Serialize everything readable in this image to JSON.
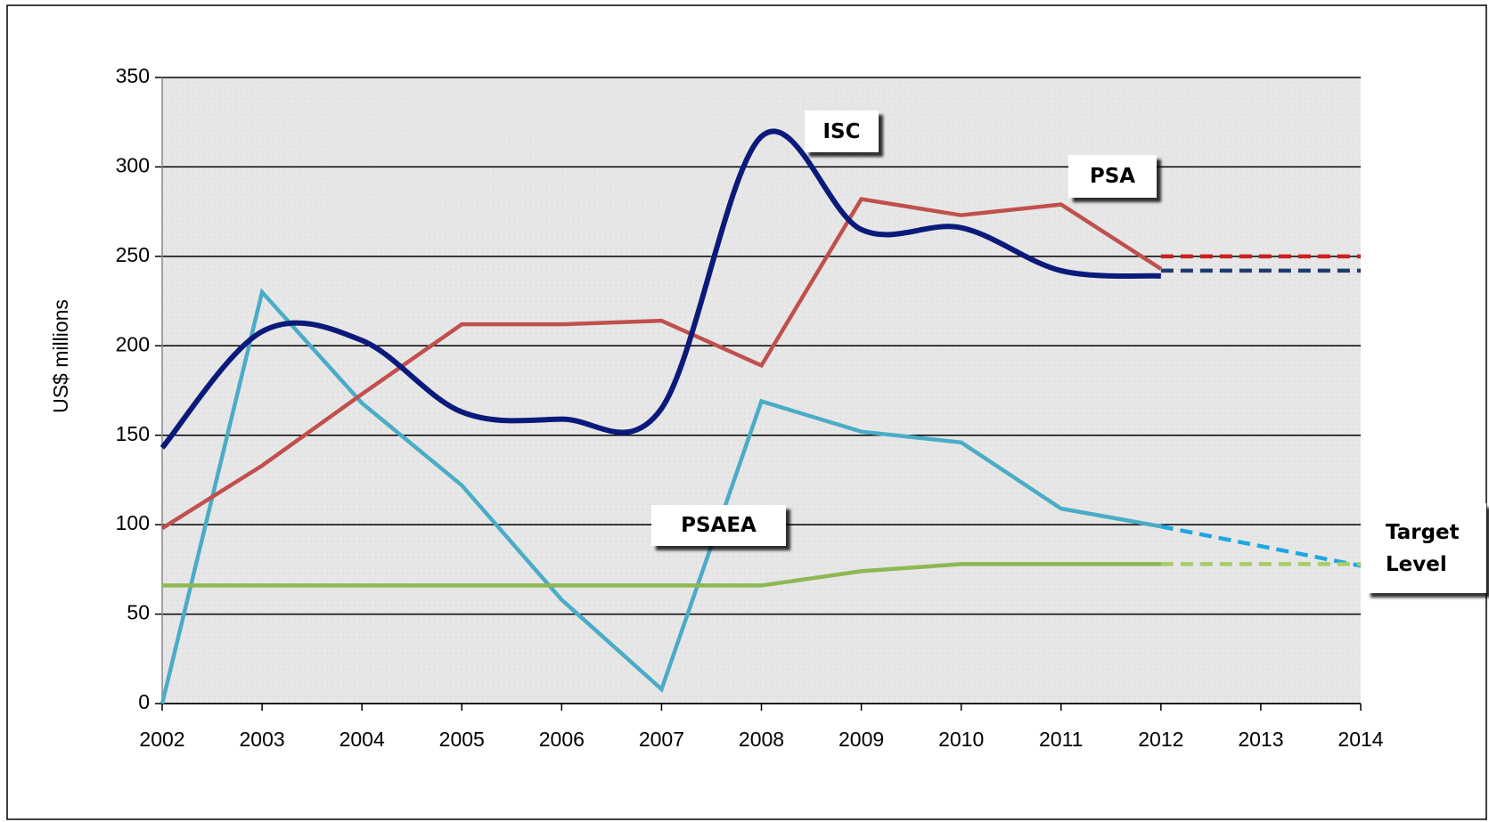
{
  "chart_data": {
    "type": "line",
    "y_label": "US$ millions",
    "x": [
      2002,
      2003,
      2004,
      2005,
      2006,
      2007,
      2008,
      2009,
      2010,
      2011,
      2012,
      2013,
      2014
    ],
    "xlim": [
      2002,
      2014
    ],
    "xticks": [
      2002,
      2003,
      2004,
      2005,
      2006,
      2007,
      2008,
      2009,
      2010,
      2011,
      2012,
      2013,
      2014
    ],
    "ylim": [
      0,
      350
    ],
    "yticks": [
      0,
      50,
      100,
      150,
      200,
      250,
      300,
      350
    ],
    "grid": true,
    "series": [
      {
        "name": "ISC",
        "color": "#0b1a7a",
        "smooth": true,
        "values": [
          143,
          208,
          203,
          163,
          159,
          165,
          317,
          265,
          266,
          242,
          239,
          null,
          null
        ],
        "projection": [
          null,
          null,
          null,
          null,
          null,
          null,
          null,
          null,
          null,
          null,
          242,
          242,
          242
        ],
        "projection_color": "#1f3a6e"
      },
      {
        "name": "PSA",
        "color": "#c0504d",
        "smooth": false,
        "values": [
          98,
          133,
          173,
          212,
          212,
          214,
          189,
          282,
          273,
          279,
          243,
          null,
          null
        ],
        "projection": [
          null,
          null,
          null,
          null,
          null,
          null,
          null,
          null,
          null,
          null,
          250,
          250,
          250
        ],
        "projection_color": "#cc1f1f"
      },
      {
        "name": "PSAEA",
        "color": "#8db853",
        "smooth": false,
        "values": [
          66,
          66,
          66,
          66,
          66,
          66,
          66,
          74,
          78,
          78,
          78,
          null,
          null
        ],
        "projection": [
          null,
          null,
          null,
          null,
          null,
          null,
          null,
          null,
          null,
          null,
          78,
          78,
          78
        ],
        "projection_color": "#a6cc66"
      },
      {
        "name": "Target Level",
        "color": "#4bacc6",
        "smooth": false,
        "values": [
          0,
          230,
          168,
          122,
          58,
          8,
          169,
          152,
          146,
          109,
          99,
          null,
          null
        ],
        "projection": [
          null,
          null,
          null,
          null,
          null,
          null,
          null,
          null,
          null,
          null,
          99,
          88,
          77
        ],
        "projection_color": "#1fa7e0"
      }
    ]
  }
}
